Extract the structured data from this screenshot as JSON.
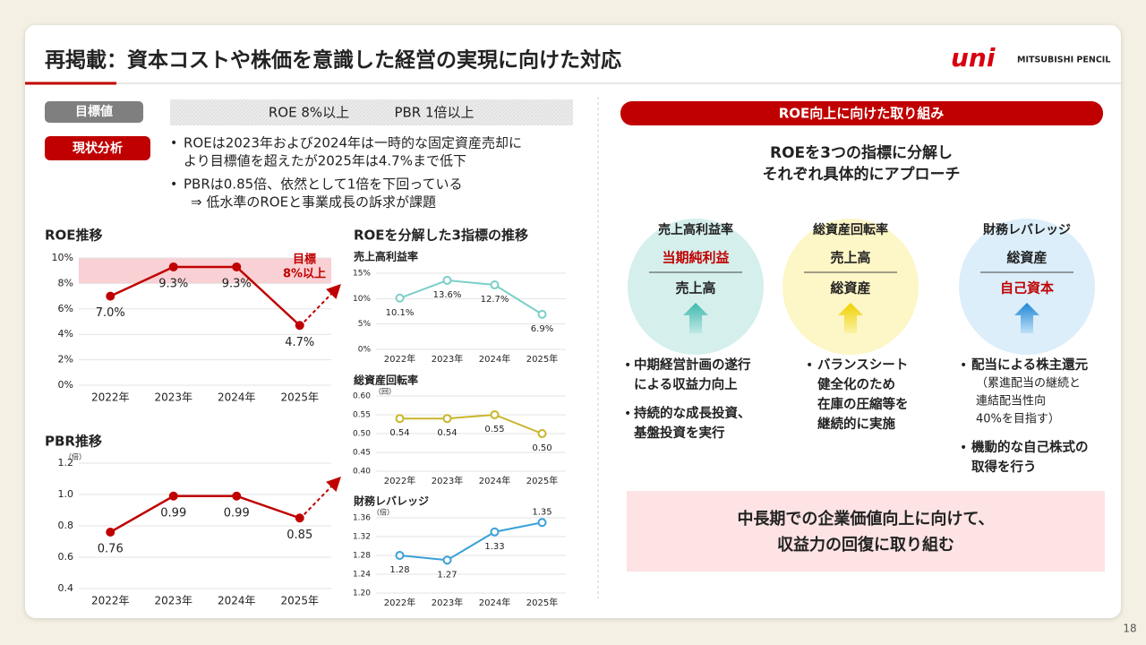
{
  "header": {
    "title": "再掲載：資本コストや株価を意識した経営の実現に向けた対応",
    "logo": {
      "brand": "uni",
      "company": "MITSUBISHI PENCIL"
    }
  },
  "page_number": "18",
  "target": {
    "label": "目標値",
    "items": [
      "ROE  8%以上",
      "PBR  1倍以上"
    ]
  },
  "analysis": {
    "label": "現状分析",
    "bullets": [
      {
        "lines": [
          "ROEは2023年および2024年は一時的な固定資産売却に",
          "より目標値を超えたが2025年は4.7%まで低下"
        ]
      },
      {
        "lines": [
          "PBRは0.85倍、依然として1倍を下回っている"
        ],
        "sub": [
          "⇒ 低水準のROEと事業成長の訴求が課題"
        ]
      }
    ]
  },
  "decomposition_title": "ROEを分解した3指標の推移",
  "initiatives": {
    "title": "ROE向上に向けた取り組み",
    "subtitle": [
      "ROEを3つの指標に分解し",
      "それぞれ具体的にアプローチ"
    ],
    "pillars": [
      {
        "name": "売上高利益率",
        "numerator": "当期純利益",
        "denominator": "売上高",
        "highlight": "numerator",
        "bullets": [
          {
            "lines": [
              "中期経営計画の遂行",
              "による収益力向上"
            ]
          },
          {
            "lines": [
              "持続的な成長投資、",
              "基盤投資を実行"
            ]
          }
        ]
      },
      {
        "name": "総資産回転率",
        "numerator": "売上高",
        "denominator": "総資産",
        "bullets": [
          {
            "lines": [
              "バランスシート",
              "健全化のため",
              "在庫の圧縮等を",
              "継続的に実施"
            ]
          }
        ]
      },
      {
        "name": "財務レバレッジ",
        "numerator": "総資産",
        "denominator": "自己資本",
        "highlight": "denominator",
        "bullets": [
          {
            "lines": [
              "配当による株主還元"
            ],
            "sub": [
              "（累進配当の継続と",
              "連結配当性向",
              "40%を目指す）"
            ]
          },
          {
            "lines": [
              "機動的な自己株式の",
              "取得を行う"
            ]
          }
        ]
      }
    ],
    "conclusion": [
      "中長期での企業価値向上に向けて、",
      "収益力の回復に取り組む"
    ]
  },
  "chart_data": [
    {
      "type": "line",
      "title": "ROE推移",
      "categories": [
        "2022年",
        "2023年",
        "2024年",
        "2025年"
      ],
      "series": [
        {
          "color": "#c00000",
          "values": [
            7.0,
            9.3,
            9.3,
            4.7
          ],
          "value_labels": [
            "7.0%",
            "9.3%",
            "9.3%",
            "4.7%"
          ]
        }
      ],
      "ylim": [
        0,
        10
      ],
      "yticks": [
        {
          "value": 0,
          "label": "0%"
        },
        {
          "value": 2,
          "label": "2%"
        },
        {
          "value": 4,
          "label": "4%"
        },
        {
          "value": 6,
          "label": "6%"
        },
        {
          "value": 8,
          "label": "8%"
        },
        {
          "value": 10,
          "label": "10%"
        }
      ],
      "grid": true,
      "marker": "filled",
      "trend_arrow": true,
      "target_band": {
        "from": 8,
        "to": 10,
        "color": "#f9d0d3"
      },
      "annotation": [
        "目標",
        "8%以上"
      ]
    },
    {
      "type": "line",
      "title": "PBR推移",
      "y_unit": "（倍）",
      "categories": [
        "2022年",
        "2023年",
        "2024年",
        "2025年"
      ],
      "series": [
        {
          "color": "#c00000",
          "values": [
            0.76,
            0.99,
            0.99,
            0.85
          ]
        }
      ],
      "ylim": [
        0.4,
        1.2
      ],
      "yticks": [
        0.4,
        0.6,
        0.8,
        {
          "value": 1.0,
          "label": "1.0"
        },
        1.2
      ],
      "grid": true,
      "marker": "filled",
      "trend_arrow": true
    },
    {
      "type": "line",
      "title": "売上高利益率",
      "categories": [
        "2022年",
        "2023年",
        "2024年",
        "2025年"
      ],
      "series": [
        {
          "color": "#7ccfc9",
          "values": [
            10.1,
            13.6,
            12.7,
            6.9
          ],
          "value_labels": [
            "10.1%",
            "13.6%",
            "12.7%",
            "6.9%"
          ]
        }
      ],
      "ylim": [
        0,
        15
      ],
      "yticks": [
        {
          "value": 0,
          "label": "0%"
        },
        {
          "value": 5,
          "label": "5%"
        },
        {
          "value": 10,
          "label": "10%"
        },
        {
          "value": 15,
          "label": "15%"
        }
      ],
      "grid": true,
      "marker": "hollow"
    },
    {
      "type": "line",
      "title": "総資産回転率",
      "y_unit": "（回）",
      "categories": [
        "2022年",
        "2023年",
        "2024年",
        "2025年"
      ],
      "series": [
        {
          "color": "#c9b52a",
          "values": [
            0.54,
            0.54,
            0.55,
            0.5
          ],
          "value_labels": [
            "0.54",
            "0.54",
            "0.55",
            "0.50"
          ]
        }
      ],
      "ylim": [
        0.4,
        0.6
      ],
      "yticks": [
        {
          "value": 0.4,
          "label": "0.40"
        },
        0.45,
        {
          "value": 0.5,
          "label": "0.50"
        },
        0.55,
        {
          "value": 0.6,
          "label": "0.60"
        }
      ],
      "grid": true,
      "marker": "hollow"
    },
    {
      "type": "line",
      "title": "財務レバレッジ",
      "y_unit": "（倍）",
      "categories": [
        "2022年",
        "2023年",
        "2024年",
        "2025年"
      ],
      "series": [
        {
          "color": "#3ba0d8",
          "values": [
            1.28,
            1.27,
            1.33,
            1.35
          ]
        }
      ],
      "ylim": [
        1.2,
        1.36
      ],
      "yticks": [
        {
          "value": 1.2,
          "label": "1.20"
        },
        1.24,
        1.28,
        1.32,
        1.36
      ],
      "grid": true,
      "marker": "hollow"
    }
  ]
}
